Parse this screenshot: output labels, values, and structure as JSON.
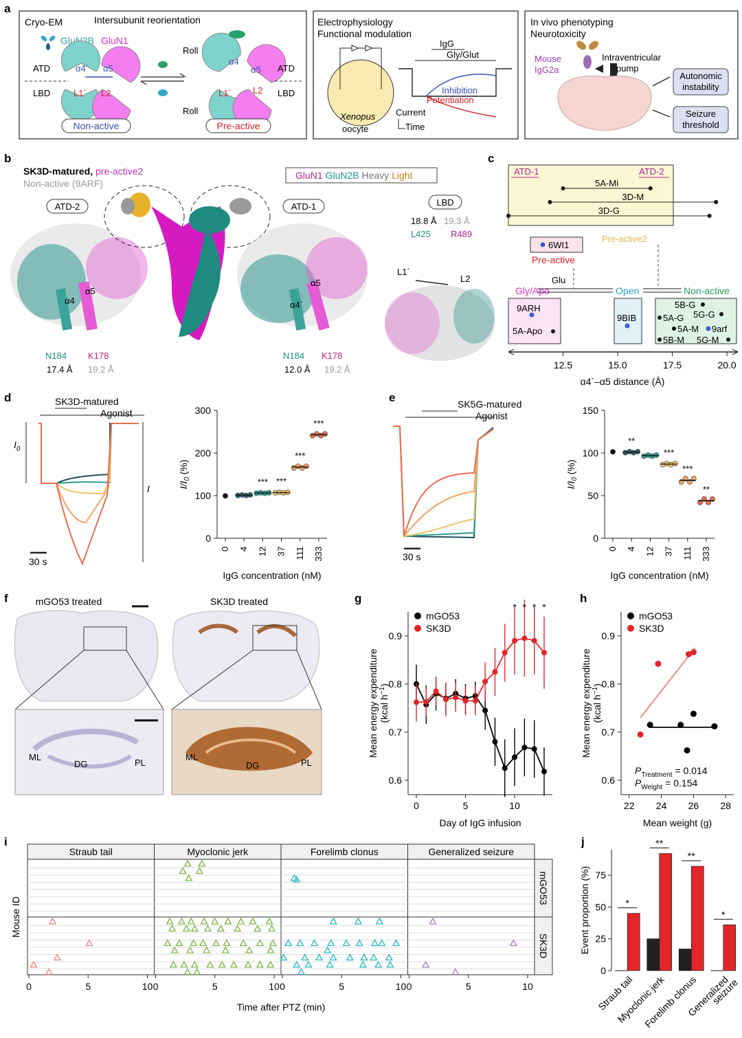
{
  "panels": {
    "a": "a",
    "b": "b",
    "c": "c",
    "d": "d",
    "e": "e",
    "f": "f",
    "g": "g",
    "h": "h",
    "i": "i",
    "j": "j"
  },
  "a": {
    "box1": {
      "title": "Cryo-EM",
      "subtitle": "Intersubunit reorientation",
      "glun2b": "GluN2B",
      "glun1": "GluN1",
      "atd": "ATD",
      "lbd": "LBD",
      "a4p": "α4´",
      "a5": "α5",
      "a4": "α4",
      "l1p": "L1´",
      "l2": "L2",
      "roll": "Roll",
      "non_active": "Non-active",
      "pre_active": "Pre-active",
      "colors": {
        "glun2b": "#7ed3cd",
        "glun1": "#f47df0",
        "blue": "#3a4fb5",
        "red": "#d2232a"
      }
    },
    "box2": {
      "title": "Electrophysiology",
      "subtitle": "Functional modulation",
      "igg": "IgG",
      "gly_glut": "Gly/Glut",
      "inhibition": "Inhibition",
      "potentiation": "Potentiation",
      "xenopus": "Xenopus",
      "oocyte": "oocyte",
      "current": "Current",
      "time": "Time"
    },
    "box3": {
      "title": "In vivo phenotyping",
      "subtitle": "Neurotoxicity",
      "mouse": "Mouse",
      "igg2a": "IgG2a",
      "intraventricular": "Intraventricular",
      "pump": "pump",
      "autonomic_l1": "Autonomic",
      "autonomic_l2": "instability",
      "seizure_l1": "Seizure",
      "seizure_l2": "threshold"
    }
  },
  "b": {
    "legend_black": "SK3D-matured, ",
    "legend_magenta": "pre-active2",
    "legend_gray": "Non-active (9ARF)",
    "key_glun1": "GluN1",
    "key_glun2b": "GluN2B",
    "key_heavy": "Heavy",
    "key_light": "Light",
    "atd2": "ATD-2",
    "atd1": "ATD-1",
    "lbd": "LBD",
    "left": {
      "a4": "α4",
      "a5": "α5",
      "n184": "N184",
      "k178": "K178",
      "d1": "17.4 Å",
      "d2": "19.2 Å"
    },
    "right": {
      "a4": "α4´",
      "a5": "α5",
      "n184": "N184",
      "k178": "K178",
      "d1": "12.0 Å",
      "d2": "19.2 Å"
    },
    "lbd_panel": {
      "d1": "18.8 Å",
      "d2": "19.3 Å",
      "l425": "L425",
      "r489": "R489",
      "l1p": "L1´",
      "l2": "L2"
    }
  },
  "c": {
    "atd1": "ATD-1",
    "atd2": "ATD-2",
    "bars": [
      "5A-Mi",
      "3D-M",
      "3D-G"
    ],
    "pre_active_box": "6WI1",
    "pre_active": "Pre-active",
    "pre_active2": "Pre-active2",
    "glu": "Glu",
    "gly_apo": "Gly/Apo",
    "open": "Open",
    "non_active": "Non-active",
    "box_gly": [
      "9ARH",
      "5A-Apo"
    ],
    "box_open": [
      "9BIB"
    ],
    "box_non": [
      "5B-G",
      "5A-G",
      "5G-G",
      "5A-M",
      "9arf",
      "5B-M",
      "5G-M"
    ],
    "xticks": [
      "12.5",
      "15.0",
      "17.5",
      "20.0"
    ],
    "xlabel": "α4´–α5 distance (Å)"
  },
  "d": {
    "trace_label1": "SK3D-matured",
    "trace_label2": "Agonist",
    "i0": "I",
    "i0_sub": "0",
    "i_mark": "I",
    "scale": "30 s",
    "ylabel_i": "I/I",
    "ylabel_sub": "0",
    "ylabel_pct": " (%)",
    "xlabel": "IgG concentration (nM)",
    "sig": [
      "",
      "",
      "***",
      "***",
      "***",
      "***"
    ]
  },
  "e": {
    "trace_label1": "SK5G-matured",
    "trace_label2": "Agonist",
    "scale": "30 s",
    "ylabel_i": "I/I",
    "ylabel_sub": "0",
    "ylabel_pct": " (%)",
    "xlabel": "IgG concentration (nM)",
    "sig": [
      "",
      "**",
      "",
      "***",
      "***",
      "**"
    ]
  },
  "f": {
    "left_title": "mGO53 treated",
    "right_title": "SK3D treated",
    "ml": "ML",
    "dg": "DG",
    "pl": "PL"
  },
  "g": {
    "ylabel": "Mean energy expenditure",
    "ylabel2": "(kcal h",
    "ylabel_sup": "−1",
    "ylabel_end": ")",
    "xlabel": "Day of IgG infusion"
  },
  "h": {
    "ylabel": "Mean energy expenditure",
    "ylabel2": "(kcal h",
    "ylabel_sup": "−1",
    "ylabel_end": ")",
    "xlabel": "Mean weight (g)",
    "p1": "P",
    "p1_sub": "Treatment",
    "p1_val": " = 0.014",
    "p2": "P",
    "p2_sub": "Weight",
    "p2_val": " = 0.154"
  },
  "i": {
    "facets": [
      "Straub tail",
      "Myoclonic jerk",
      "Forelimb clonus",
      "Generalized seizure"
    ],
    "groups": [
      "mGO53",
      "SK3D"
    ],
    "ylabel": "Mouse ID",
    "xlabel": "Time after PTZ (min)",
    "xticks": [
      "0",
      "5",
      "10"
    ]
  },
  "j": {
    "ylabel": "Event proportion (%)",
    "sig": [
      "*",
      "**",
      "**",
      "*"
    ]
  },
  "chart_data": [
    {
      "id": "d",
      "type": "scatter",
      "title": "",
      "xlabel": "IgG concentration (nM)",
      "ylabel": "I/I0 (%)",
      "categories": [
        "0",
        "4",
        "12",
        "37",
        "111",
        "333"
      ],
      "values": [
        100,
        101,
        106,
        107,
        167,
        243
      ],
      "ylim": [
        0,
        300
      ],
      "yticks": [
        0,
        100,
        200,
        300
      ],
      "colors": [
        "#111111",
        "#2e5f6d",
        "#2a9d8f",
        "#e9c46a",
        "#f4a261",
        "#e76f51"
      ]
    },
    {
      "id": "e",
      "type": "scatter",
      "title": "",
      "xlabel": "IgG concentration (nM)",
      "ylabel": "I/I0 (%)",
      "categories": [
        "0",
        "4",
        "12",
        "37",
        "111",
        "333"
      ],
      "values": [
        102,
        101,
        97,
        87,
        68,
        44
      ],
      "ylim": [
        0,
        150
      ],
      "yticks": [
        0,
        50,
        100,
        150
      ],
      "colors": [
        "#111111",
        "#2e5f6d",
        "#2a9d8f",
        "#e9c46a",
        "#f4a261",
        "#e76f51"
      ]
    },
    {
      "id": "g",
      "type": "line",
      "xlabel": "Day of IgG infusion",
      "ylabel": "Mean energy expenditure (kcal h−1)",
      "xlim": [
        0,
        13
      ],
      "ylim": [
        0.57,
        0.95
      ],
      "xticks": [
        0,
        5,
        10
      ],
      "yticks": [
        0.6,
        0.7,
        0.8,
        0.9
      ],
      "legend_position": "top-left",
      "significant_days": [
        10,
        11,
        12,
        13
      ],
      "series": [
        {
          "name": "mGO53",
          "color": "#000000",
          "x": [
            0,
            1,
            2,
            3,
            4,
            5,
            6,
            7,
            8,
            9,
            10,
            11,
            12,
            13
          ],
          "y": [
            0.8,
            0.757,
            0.78,
            0.77,
            0.78,
            0.77,
            0.775,
            0.745,
            0.68,
            0.625,
            0.648,
            0.668,
            0.665,
            0.618
          ],
          "err": [
            0.04,
            0.04,
            0.035,
            0.03,
            0.03,
            0.03,
            0.03,
            0.04,
            0.05,
            0.06,
            0.06,
            0.06,
            0.06,
            0.05
          ]
        },
        {
          "name": "SK3D",
          "color": "#e2262a",
          "x": [
            0,
            1,
            2,
            3,
            4,
            5,
            6,
            7,
            8,
            9,
            10,
            11,
            12,
            13
          ],
          "y": [
            0.762,
            0.763,
            0.785,
            0.768,
            0.772,
            0.765,
            0.765,
            0.805,
            0.825,
            0.865,
            0.89,
            0.895,
            0.89,
            0.865
          ],
          "err": [
            0.04,
            0.03,
            0.03,
            0.035,
            0.03,
            0.03,
            0.03,
            0.04,
            0.05,
            0.06,
            0.07,
            0.08,
            0.07,
            0.075
          ]
        }
      ]
    },
    {
      "id": "h",
      "type": "scatter",
      "xlabel": "Mean weight (g)",
      "ylabel": "Mean energy expenditure (kcal h−1)",
      "xlim": [
        21.5,
        28.5
      ],
      "ylim": [
        0.57,
        0.95
      ],
      "xticks": [
        22,
        24,
        26,
        28
      ],
      "yticks": [
        0.6,
        0.7,
        0.8,
        0.9
      ],
      "legend_position": "top-left",
      "series": [
        {
          "name": "mGO53",
          "color": "#000000",
          "x": [
            23.3,
            25.2,
            25.6,
            26.0,
            27.3
          ],
          "y": [
            0.715,
            0.715,
            0.662,
            0.738,
            0.712
          ],
          "fit": [
            [
              23.3,
              0.71
            ],
            [
              27.3,
              0.71
            ]
          ]
        },
        {
          "name": "SK3D",
          "color": "#e2262a",
          "x": [
            22.7,
            23.8,
            25.7,
            26.0
          ],
          "y": [
            0.695,
            0.842,
            0.862,
            0.866
          ],
          "fit": [
            [
              22.7,
              0.73
            ],
            [
              26.1,
              0.875
            ]
          ]
        }
      ]
    },
    {
      "id": "i",
      "type": "scatter",
      "xlabel": "Time after PTZ (min)",
      "ylabel": "Mouse ID",
      "xlim": [
        0,
        10
      ],
      "xticks": [
        0,
        5,
        10
      ],
      "facets": [
        "Straub tail",
        "Myoclonic jerk",
        "Forelimb clonus",
        "Generalized seizure"
      ],
      "facet_colors": [
        "#f08080",
        "#7cb342",
        "#26b5c4",
        "#a77fc6"
      ],
      "groups": [
        "mGO53",
        "SK3D"
      ]
    },
    {
      "id": "j",
      "type": "bar",
      "categories": [
        "Straub tail",
        "Myoclonic jerk",
        "Forelimb clonus",
        "Generalized seizure"
      ],
      "ylabel": "Event proportion (%)",
      "ylim": [
        0,
        95
      ],
      "yticks": [
        0,
        25,
        50,
        75
      ],
      "series": [
        {
          "name": "mGO53",
          "color": "#222222",
          "values": [
            0,
            25,
            17,
            0
          ]
        },
        {
          "name": "SK3D",
          "color": "#e2262a",
          "values": [
            45,
            92,
            82,
            36
          ]
        }
      ],
      "significance": [
        "*",
        "**",
        "**",
        "*"
      ]
    }
  ]
}
